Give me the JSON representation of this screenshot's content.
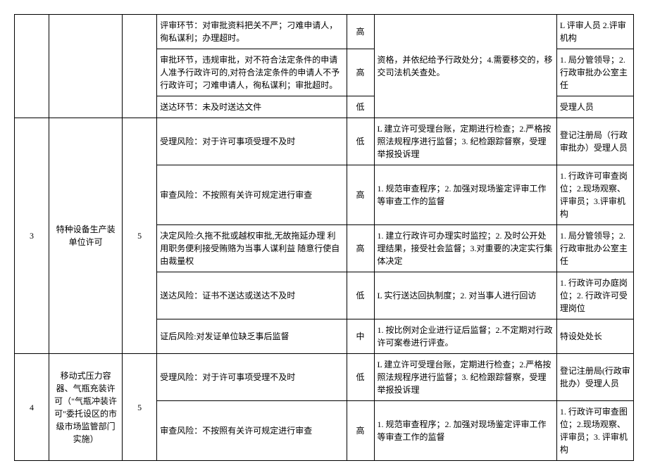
{
  "table": {
    "partial_top": {
      "measure_shared": "资格，并依纪给予行政处分；4.需要移交的，移交司法机关查处。",
      "rows": [
        {
          "risk": "评审环节：对审批资料把关不严；刁难申请人，徇私谋利；办理超时。",
          "level": "高",
          "owner": "L 评审人员 2.评审机构"
        },
        {
          "risk": "审批环节，违规审批，对不符合法定条件的申请人准予行政许可的,对符合法定条件的申请人不予行政许可；刁难申请人，徇私谋利；审批超时。",
          "level": "高",
          "owner": "1. 局分管领导；2. 行政审批办公室主任"
        },
        {
          "risk": "送达环节：未及时送达文件",
          "level": "低",
          "owner": "受理人员"
        }
      ]
    },
    "row3": {
      "idx": "3",
      "name": "特种设备生产装单位许可",
      "count": "5",
      "rows": [
        {
          "risk": "受理风险：对于许可事项受理不及时",
          "level": "低",
          "measure": "L 建立许可受理台账，定期进行检查；2.严格按照法规程序进行监督；3. 纪检跟踪督察，受理举报投诉理",
          "owner": "登记注册局（行政审批办）受理人员"
        },
        {
          "risk": "审查风险：不按照有关许可规定进行审查",
          "level": "高",
          "measure": "1. 规范审查程序；2. 加强对现场鉴定评审工作等审查工作的监督",
          "owner": "1. 行政许可审查岗位；2.现场观察、评审员；3.评审机构"
        },
        {
          "risk": "决定风险:久拖不批或越权审批,无故拖延办理 利用职务便利接受贿赂为当事人谋利益 随意行使自由裁量权",
          "level": "高",
          "measure": "1. 建立行政许可办理实时监控；2. 及时公开处理结果，接受社会监督；3.对重要的决定实行集体决定",
          "owner": "1. 局分管领导；2. 行政审批办公室主任"
        },
        {
          "risk": "送达风险：证书不送达或送达不及时",
          "level": "低",
          "measure": "L 实行送达回执制度；2. 对当事人进行回访",
          "owner": "1. 行政许可办庭岗位；2. 行政许可受理岗位"
        },
        {
          "risk": "证后风险:对发证单位缺乏事后监督",
          "level": "中",
          "measure": "1. 按比例对企业进行证后监督；2.不定期对行政许可案卷进行评查。",
          "owner": "特设处处长"
        }
      ]
    },
    "row4": {
      "idx": "4",
      "name": "移动式压力容器、气瓶充装许可（\"气瓶冲装许可\"委托设区的市级市场监管部门实施）",
      "count": "5",
      "rows": [
        {
          "risk": "受理风险：对于许可事项受理不及时",
          "level": "低",
          "measure": "L 建立许可受理台账，定期进行检查；2.严格按照法规程序进行监督；3. 纪检跟踪督察，受理举报投诉理",
          "owner": "登记注册局(行政审批办）受理人员"
        },
        {
          "risk": "审查风险：不按照有关许可规定进行审查",
          "level": "高",
          "measure": "1. 规范审查程序；2. 加强对现场鉴定评审工作等审查工作的监督",
          "owner": "1. 行政许可审查图位；2.现场观察、评审员；3. 评审机构"
        }
      ]
    }
  }
}
